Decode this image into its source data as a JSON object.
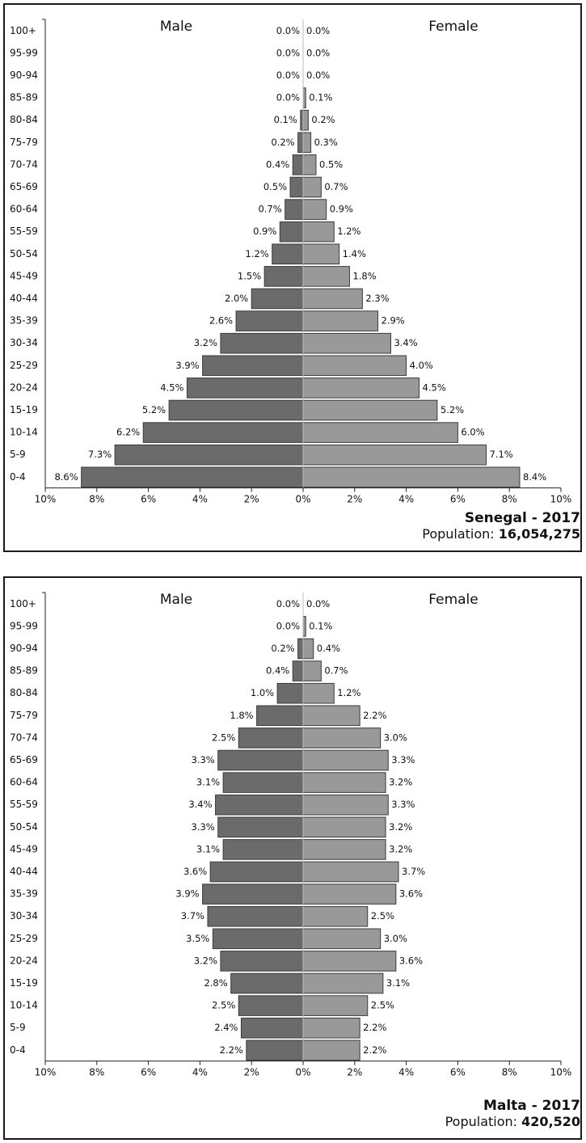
{
  "chart_data": [
    {
      "type": "bar",
      "orientation": "horizontal-population-pyramid",
      "country": "Senegal - 2017",
      "population_label": "Population: ",
      "population_value": "16,054,275",
      "male_label": "Male",
      "female_label": "Female",
      "xlim": [
        -10,
        10
      ],
      "x_ticks": [
        "10%",
        "8%",
        "6%",
        "4%",
        "2%",
        "0%",
        "2%",
        "4%",
        "6%",
        "8%",
        "10%"
      ],
      "categories": [
        "100+",
        "95-99",
        "90-94",
        "85-89",
        "80-84",
        "75-79",
        "70-74",
        "65-69",
        "60-64",
        "55-59",
        "50-54",
        "45-49",
        "40-44",
        "35-39",
        "30-34",
        "25-29",
        "20-24",
        "15-19",
        "10-14",
        "5-9",
        "0-4"
      ],
      "series": [
        {
          "name": "Male",
          "values": [
            0.0,
            0.0,
            0.0,
            0.0,
            0.1,
            0.2,
            0.4,
            0.5,
            0.7,
            0.9,
            1.2,
            1.5,
            2.0,
            2.6,
            3.2,
            3.9,
            4.5,
            5.2,
            6.2,
            7.3,
            8.6
          ],
          "labels": [
            "0.0%",
            "0.0%",
            "0.0%",
            "0.0%",
            "0.1%",
            "0.2%",
            "0.4%",
            "0.5%",
            "0.7%",
            "0.9%",
            "1.2%",
            "1.5%",
            "2.0%",
            "2.6%",
            "3.2%",
            "3.9%",
            "4.5%",
            "5.2%",
            "6.2%",
            "7.3%",
            "8.6%"
          ]
        },
        {
          "name": "Female",
          "values": [
            0.0,
            0.0,
            0.0,
            0.1,
            0.2,
            0.3,
            0.5,
            0.7,
            0.9,
            1.2,
            1.4,
            1.8,
            2.3,
            2.9,
            3.4,
            4.0,
            4.5,
            5.2,
            6.0,
            7.1,
            8.4
          ],
          "labels": [
            "0.0%",
            "0.0%",
            "0.0%",
            "0.1%",
            "0.2%",
            "0.3%",
            "0.5%",
            "0.7%",
            "0.9%",
            "1.2%",
            "1.4%",
            "1.8%",
            "2.3%",
            "2.9%",
            "3.4%",
            "4.0%",
            "4.5%",
            "5.2%",
            "6.0%",
            "7.1%",
            "8.4%"
          ]
        }
      ],
      "colors": {
        "male": "#6b6b6b",
        "female": "#999999",
        "edge": "#3a3a3a"
      }
    },
    {
      "type": "bar",
      "orientation": "horizontal-population-pyramid",
      "country": "Malta - 2017",
      "population_label": "Population: ",
      "population_value": "420,520",
      "male_label": "Male",
      "female_label": "Female",
      "xlim": [
        -10,
        10
      ],
      "x_ticks": [
        "10%",
        "8%",
        "6%",
        "4%",
        "2%",
        "0%",
        "2%",
        "4%",
        "6%",
        "8%",
        "10%"
      ],
      "categories": [
        "100+",
        "95-99",
        "90-94",
        "85-89",
        "80-84",
        "75-79",
        "70-74",
        "65-69",
        "60-64",
        "55-59",
        "50-54",
        "45-49",
        "40-44",
        "35-39",
        "30-34",
        "25-29",
        "20-24",
        "15-19",
        "10-14",
        "5-9",
        "0-4"
      ],
      "series": [
        {
          "name": "Male",
          "values": [
            0.0,
            0.0,
            0.2,
            0.4,
            1.0,
            1.8,
            2.5,
            3.3,
            3.1,
            3.4,
            3.3,
            3.1,
            3.6,
            3.9,
            3.7,
            3.5,
            3.2,
            2.8,
            2.5,
            2.4,
            2.2
          ],
          "labels": [
            "0.0%",
            "0.0%",
            "0.2%",
            "0.4%",
            "1.0%",
            "1.8%",
            "2.5%",
            "3.3%",
            "3.1%",
            "3.4%",
            "3.3%",
            "3.1%",
            "3.6%",
            "3.9%",
            "3.7%",
            "3.5%",
            "3.2%",
            "2.8%",
            "2.5%",
            "2.4%",
            "2.2%"
          ]
        },
        {
          "name": "Female",
          "values": [
            0.0,
            0.1,
            0.4,
            0.7,
            1.2,
            2.2,
            3.0,
            3.3,
            3.2,
            3.3,
            3.2,
            3.2,
            3.7,
            3.6,
            2.5,
            3.0,
            3.6,
            3.1,
            2.5,
            2.2,
            2.2
          ],
          "labels": [
            "0.0%",
            "0.1%",
            "0.4%",
            "0.7%",
            "1.2%",
            "2.2%",
            "3.0%",
            "3.3%",
            "3.2%",
            "3.3%",
            "3.2%",
            "3.2%",
            "3.7%",
            "3.6%",
            "2.5%",
            "3.0%",
            "3.6%",
            "3.1%",
            "2.5%",
            "2.2%",
            "2.2%"
          ]
        }
      ],
      "colors": {
        "male": "#6b6b6b",
        "female": "#999999",
        "edge": "#3a3a3a"
      }
    }
  ]
}
